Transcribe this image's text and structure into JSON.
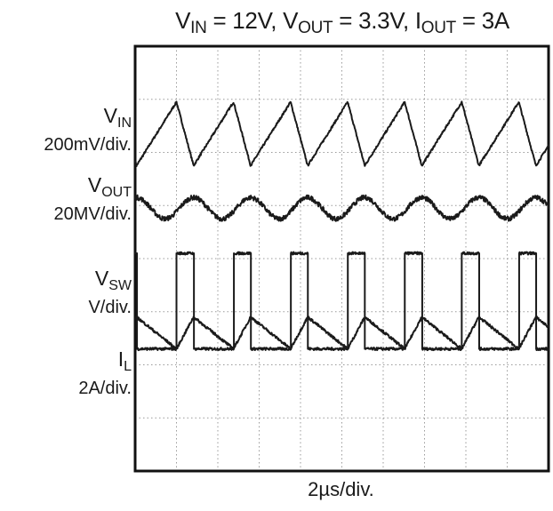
{
  "title_parts": {
    "vin_sym": "V",
    "vin_sub": "IN",
    "vin_val": " = 12V, ",
    "vout_sym": "V",
    "vout_sub": "OUT",
    "vout_val": " = 3.3V, ",
    "iout_sym": "I",
    "iout_sub": "OUT",
    "iout_val": " = 3A"
  },
  "chart_data": {
    "type": "line",
    "title": "VIN = 12V, VOUT = 3.3V, IOUT = 3A",
    "xlabel": "2µs/div.",
    "x_divisions": 10,
    "y_divisions": 8,
    "grid": true,
    "grid_style": "dotted",
    "switching_period_div": 1.38,
    "series": [
      {
        "name": "VIN",
        "sub": "IN",
        "sym": "V",
        "scale": "200mV/div.",
        "waveform": "sawtooth-ramp-up",
        "center_div": 6.35,
        "amplitude_div": 0.6,
        "color": "#1a1a1a"
      },
      {
        "name": "VOUT",
        "sub": "OUT",
        "sym": "V",
        "scale": "20MV/div.",
        "waveform": "sinusoid-noisy",
        "center_div": 4.95,
        "amplitude_div": 0.2,
        "color": "#1a1a1a"
      },
      {
        "name": "VSW",
        "sub": "SW",
        "sym": "V",
        "scale": "V/div.",
        "waveform": "pulse",
        "low_div": 2.3,
        "high_div": 4.1,
        "duty": 0.3,
        "color": "#1a1a1a"
      },
      {
        "name": "IL",
        "sub": "L",
        "sym": "I",
        "scale": "2A/div.",
        "waveform": "triangle",
        "center_div": 2.6,
        "amplitude_div": 0.3,
        "color": "#1a1a1a"
      }
    ],
    "first_edge_div": 1.0
  }
}
